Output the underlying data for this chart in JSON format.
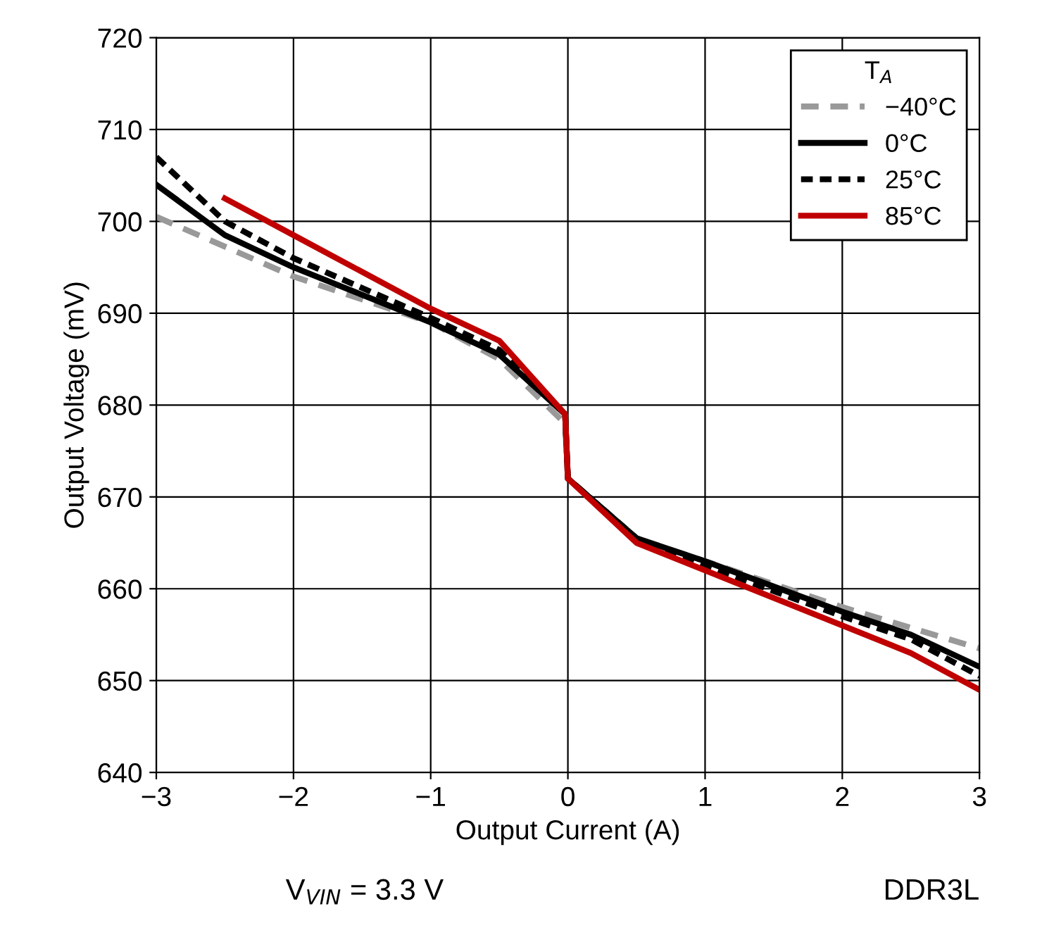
{
  "chart_data": {
    "type": "line",
    "xlabel": "Output Current (A)",
    "ylabel": "Output Voltage (mV)",
    "legend_title": "T$_{A}$",
    "legend": "top right",
    "grid": true,
    "xlim": [
      -3,
      3
    ],
    "xticks": [
      {
        "value": -3,
        "label": "−3"
      },
      {
        "value": -2,
        "label": "−2"
      },
      {
        "value": -1,
        "label": "−1"
      },
      0,
      1,
      2,
      3
    ],
    "ylim": [
      640,
      720
    ],
    "yticks": [
      640,
      650,
      660,
      670,
      680,
      690,
      700,
      710,
      720
    ],
    "annotations": [
      "V$_{VIN}$ = 3.3 V",
      "DDR3L"
    ],
    "series": [
      {
        "name": "−40°C",
        "color": "#999999",
        "line_style": "dashed",
        "x": [
          -3,
          -2,
          -1,
          -0.5,
          -0.02,
          0,
          0.5,
          1,
          2,
          3
        ],
        "values": [
          700.5,
          694,
          689,
          685,
          678,
          672,
          665.5,
          663,
          658,
          653.5
        ]
      },
      {
        "name": "0°C",
        "color": "#000000",
        "line_style": "solid",
        "x": [
          -3,
          -2.5,
          -2,
          -1,
          -0.5,
          -0.02,
          0,
          0.5,
          1,
          2,
          2.5,
          3
        ],
        "values": [
          704,
          698.5,
          695,
          689,
          685.5,
          679,
          672,
          665.5,
          663,
          657.5,
          655,
          651.5
        ]
      },
      {
        "name": "25°C",
        "color": "#000000",
        "line_style": "dotted",
        "x": [
          -3,
          -2.5,
          -2,
          -1,
          -0.5,
          -0.02,
          0,
          0.5,
          1,
          2,
          2.5,
          3
        ],
        "values": [
          707,
          700,
          696,
          689.5,
          686,
          679,
          672,
          665.5,
          662.5,
          657,
          654.5,
          650.5
        ]
      },
      {
        "name": "85°C",
        "color": "#c00000",
        "line_style": "solid",
        "x": [
          -2.5,
          -2,
          -1,
          -0.5,
          -0.02,
          0,
          0.5,
          1,
          2,
          2.5,
          3
        ],
        "values": [
          702.5,
          698.5,
          690.5,
          687,
          679,
          672,
          665,
          662,
          656,
          653,
          649
        ]
      }
    ]
  }
}
